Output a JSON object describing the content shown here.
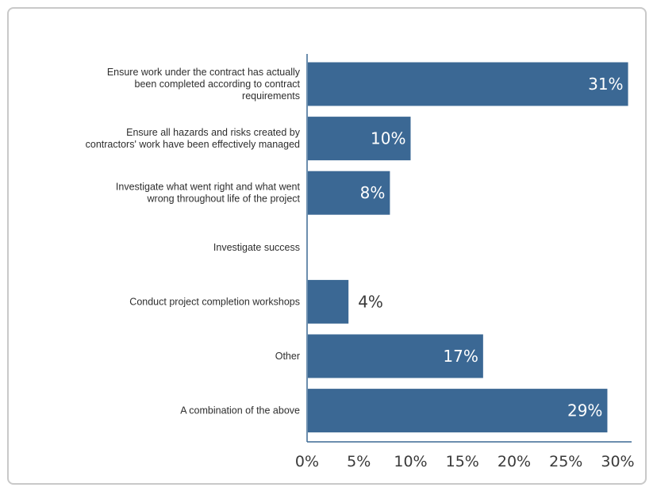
{
  "chart_data": {
    "type": "bar",
    "orientation": "horizontal",
    "categories": [
      [
        "Ensure work under the contract has actually",
        "been completed according to contract",
        "requirements"
      ],
      [
        "Ensure all hazards and risks created by",
        "contractors' work have been effectively managed"
      ],
      [
        "Investigate what went right and what went",
        "wrong throughout life of the project"
      ],
      [
        "Investigate success"
      ],
      [
        "Conduct project completion workshops"
      ],
      [
        "Other"
      ],
      [
        "A combination of the above"
      ]
    ],
    "values": [
      31,
      10,
      8,
      0,
      4,
      17,
      29
    ],
    "value_labels": [
      "31%",
      "10%",
      "8%",
      "",
      "4%",
      "17%",
      "29%"
    ],
    "x_ticks": [
      "0%",
      "5%",
      "10%",
      "15%",
      "20%",
      "25%",
      "30%"
    ],
    "x_tick_values": [
      0,
      5,
      10,
      15,
      20,
      25,
      30
    ],
    "xlim": [
      0,
      31.5
    ],
    "bar_color": "#3b6894",
    "axis_color": "#3b6894",
    "grid": false,
    "legend": "none"
  }
}
